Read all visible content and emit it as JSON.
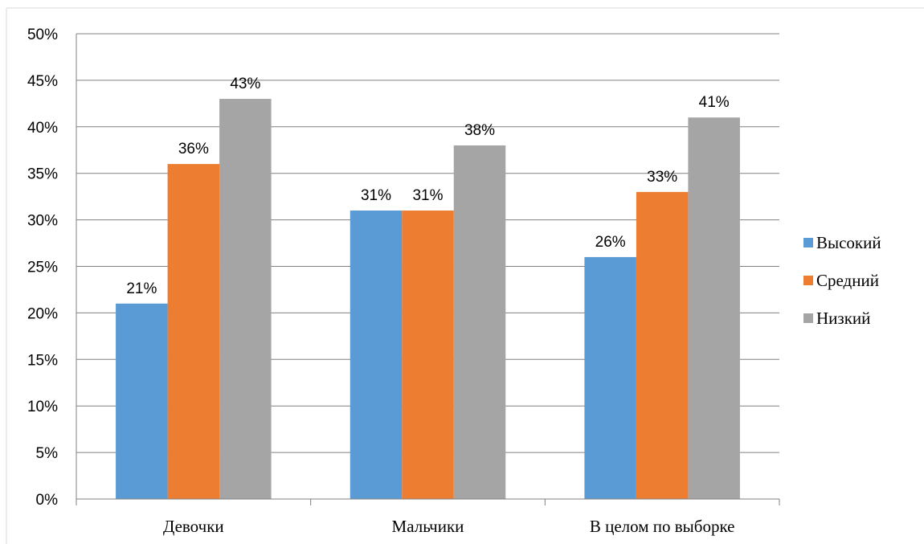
{
  "chart_data": {
    "type": "bar",
    "title": "",
    "xlabel": "",
    "ylabel": "",
    "categories": [
      "Девочки",
      "Мальчики",
      "В целом по выборке"
    ],
    "series": [
      {
        "name": "Высокий",
        "values": [
          21,
          31,
          26
        ],
        "labels": [
          "21%",
          "31%",
          "26%"
        ],
        "color": "#5B9BD5"
      },
      {
        "name": "Средний",
        "values": [
          36,
          31,
          33
        ],
        "labels": [
          "36%",
          "31%",
          "33%"
        ],
        "color": "#ED7D31"
      },
      {
        "name": "Низкий",
        "values": [
          43,
          38,
          41
        ],
        "labels": [
          "43%",
          "38%",
          "41%"
        ],
        "color": "#A5A5A5"
      }
    ],
    "ylim": [
      0,
      50
    ],
    "yticks": [
      0,
      5,
      10,
      15,
      20,
      25,
      30,
      35,
      40,
      45,
      50
    ],
    "ytick_labels": [
      "0%",
      "5%",
      "10%",
      "15%",
      "20%",
      "25%",
      "30%",
      "35%",
      "40%",
      "45%",
      "50%"
    ],
    "grid": true,
    "legend_position": "right"
  }
}
